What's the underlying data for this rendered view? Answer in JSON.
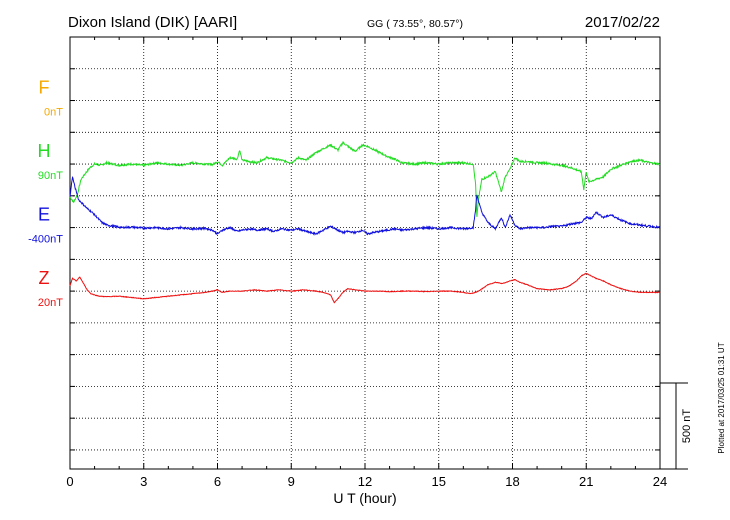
{
  "header": {
    "station": "Dixon Island (DIK)  [AARI]",
    "coords": "GG ( 73.55°,  80.57°)",
    "date": "2017/02/22"
  },
  "footer": {
    "plotted": "Plotted at 2017/03/25 01:31  UT"
  },
  "colors": {
    "F": "#f5a800",
    "H": "#22dd22",
    "E": "#1010dd",
    "Z": "#ee1111",
    "grid": "#000000"
  },
  "chart_data": {
    "type": "line",
    "title": "Dixon Island (DIK)  [AARI]",
    "xlabel": "U T (hour)",
    "ylabel": "",
    "xlim": [
      0,
      24
    ],
    "ylim": [
      -450,
      1250
    ],
    "x_ticks": [
      0,
      3,
      6,
      9,
      12,
      15,
      18,
      21,
      24
    ],
    "x_tick_labels": [
      "0",
      "3",
      "6",
      "9",
      "12",
      "15",
      "18",
      "21",
      "24"
    ],
    "grid": true,
    "scale_bar": {
      "label": "500 nT",
      "value": 500
    },
    "series": [
      {
        "name": "F",
        "baseline_label": "0nT",
        "offset": 1000,
        "x": [],
        "y": []
      },
      {
        "name": "H",
        "baseline_label": "90nT",
        "offset": 750,
        "x": [
          0,
          0.15,
          0.3,
          0.45,
          0.6,
          0.8,
          1.0,
          1.25,
          1.5,
          2,
          2.5,
          3,
          3.5,
          4,
          4.5,
          5,
          5.5,
          5.8,
          6.0,
          6.2,
          6.5,
          6.8,
          6.9,
          7.0,
          7.3,
          7.6,
          8,
          8.3,
          8.6,
          9,
          9.3,
          9.6,
          10,
          10.3,
          10.6,
          10.9,
          11.1,
          11.3,
          11.6,
          11.9,
          12.1,
          12.3,
          12.6,
          12.9,
          13.2,
          13.5,
          14,
          14.5,
          15,
          15.5,
          16,
          16.4,
          16.5,
          16.55,
          16.6,
          16.75,
          17.0,
          17.3,
          17.55,
          17.7,
          17.9,
          18.1,
          18.3,
          18.6,
          19,
          19.3,
          19.6,
          20,
          20.4,
          20.8,
          20.9,
          21.0,
          21.1,
          21.4,
          21.7,
          22,
          22.4,
          22.8,
          23.2,
          23.6,
          24
        ],
        "y": [
          -130,
          -150,
          -120,
          -60,
          -40,
          -15,
          0,
          -5,
          5,
          -5,
          0,
          -5,
          5,
          0,
          -5,
          5,
          0,
          -2,
          10,
          -5,
          25,
          20,
          55,
          15,
          10,
          5,
          25,
          20,
          15,
          5,
          25,
          15,
          45,
          60,
          75,
          55,
          85,
          70,
          50,
          75,
          70,
          60,
          45,
          30,
          20,
          5,
          0,
          5,
          0,
          5,
          5,
          0,
          -80,
          -210,
          -150,
          -60,
          -50,
          -30,
          -110,
          -50,
          -20,
          25,
          10,
          10,
          5,
          5,
          0,
          -5,
          -15,
          -30,
          -100,
          -30,
          -70,
          -60,
          -50,
          -20,
          -5,
          10,
          15,
          5,
          0
        ]
      },
      {
        "name": "E",
        "baseline_label": "-400nT",
        "offset": 500,
        "x": [
          0,
          0.1,
          0.2,
          0.35,
          0.5,
          0.7,
          0.9,
          1.1,
          1.3,
          1.5,
          1.8,
          2.1,
          2.5,
          3,
          3.5,
          4,
          4.5,
          5,
          5.5,
          5.8,
          6.0,
          6.2,
          6.5,
          6.8,
          7.0,
          7.3,
          7.6,
          8,
          8.3,
          8.6,
          9,
          9.3,
          9.6,
          10,
          10.3,
          10.6,
          10.9,
          11.1,
          11.3,
          11.6,
          11.9,
          12.1,
          12.3,
          12.6,
          12.9,
          13.2,
          13.5,
          14,
          14.5,
          15,
          15.5,
          16,
          16.4,
          16.5,
          16.55,
          16.6,
          16.75,
          17.0,
          17.3,
          17.55,
          17.7,
          17.9,
          18.1,
          18.3,
          18.6,
          19,
          19.3,
          19.6,
          20,
          20.4,
          20.8,
          21.0,
          21.2,
          21.4,
          21.7,
          22,
          22.4,
          22.8,
          23.2,
          23.6,
          24
        ],
        "y": [
          120,
          200,
          160,
          110,
          95,
          75,
          60,
          40,
          20,
          10,
          5,
          0,
          2,
          -2,
          0,
          -5,
          0,
          -5,
          -3,
          -10,
          -25,
          -10,
          0,
          -15,
          -10,
          -5,
          -10,
          -5,
          -15,
          -5,
          -10,
          -5,
          -15,
          -25,
          -10,
          5,
          -10,
          -20,
          -15,
          -20,
          -10,
          -25,
          -20,
          -15,
          -10,
          -5,
          -10,
          -5,
          0,
          -5,
          0,
          -5,
          0,
          70,
          130,
          110,
          60,
          20,
          -5,
          40,
          0,
          50,
          10,
          -5,
          0,
          0,
          0,
          5,
          5,
          15,
          20,
          40,
          35,
          60,
          40,
          50,
          30,
          15,
          10,
          5,
          0
        ]
      },
      {
        "name": "Z",
        "baseline_label": "20nT",
        "offset": 250,
        "x": [
          0,
          0.1,
          0.25,
          0.4,
          0.55,
          0.7,
          0.85,
          1.0,
          1.2,
          1.5,
          2,
          2.5,
          3,
          3.5,
          4,
          4.5,
          5,
          5.5,
          5.8,
          6.0,
          6.2,
          6.5,
          7,
          7.5,
          8,
          8.5,
          9,
          9.5,
          10,
          10.3,
          10.6,
          10.75,
          10.9,
          11.1,
          11.3,
          11.6,
          12,
          12.5,
          13,
          13.5,
          14,
          14.5,
          15,
          15.5,
          16,
          16.3,
          16.5,
          16.7,
          17.0,
          17.3,
          17.6,
          17.9,
          18.1,
          18.3,
          18.6,
          19,
          19.5,
          20,
          20.3,
          20.6,
          20.8,
          21.0,
          21.2,
          21.4,
          21.7,
          22,
          22.4,
          22.8,
          23.2,
          23.6,
          24
        ],
        "y": [
          20,
          50,
          40,
          55,
          30,
          5,
          -10,
          -15,
          -20,
          -22,
          -20,
          -25,
          -30,
          -25,
          -20,
          -15,
          -10,
          -5,
          0,
          5,
          -5,
          0,
          0,
          5,
          0,
          5,
          0,
          5,
          0,
          -5,
          -15,
          -45,
          -30,
          -5,
          10,
          5,
          0,
          0,
          -2,
          0,
          0,
          -2,
          0,
          0,
          -5,
          -10,
          -5,
          5,
          25,
          35,
          30,
          40,
          45,
          35,
          25,
          10,
          5,
          10,
          20,
          40,
          60,
          70,
          60,
          50,
          40,
          25,
          10,
          0,
          -5,
          -5,
          -5
        ]
      }
    ]
  }
}
